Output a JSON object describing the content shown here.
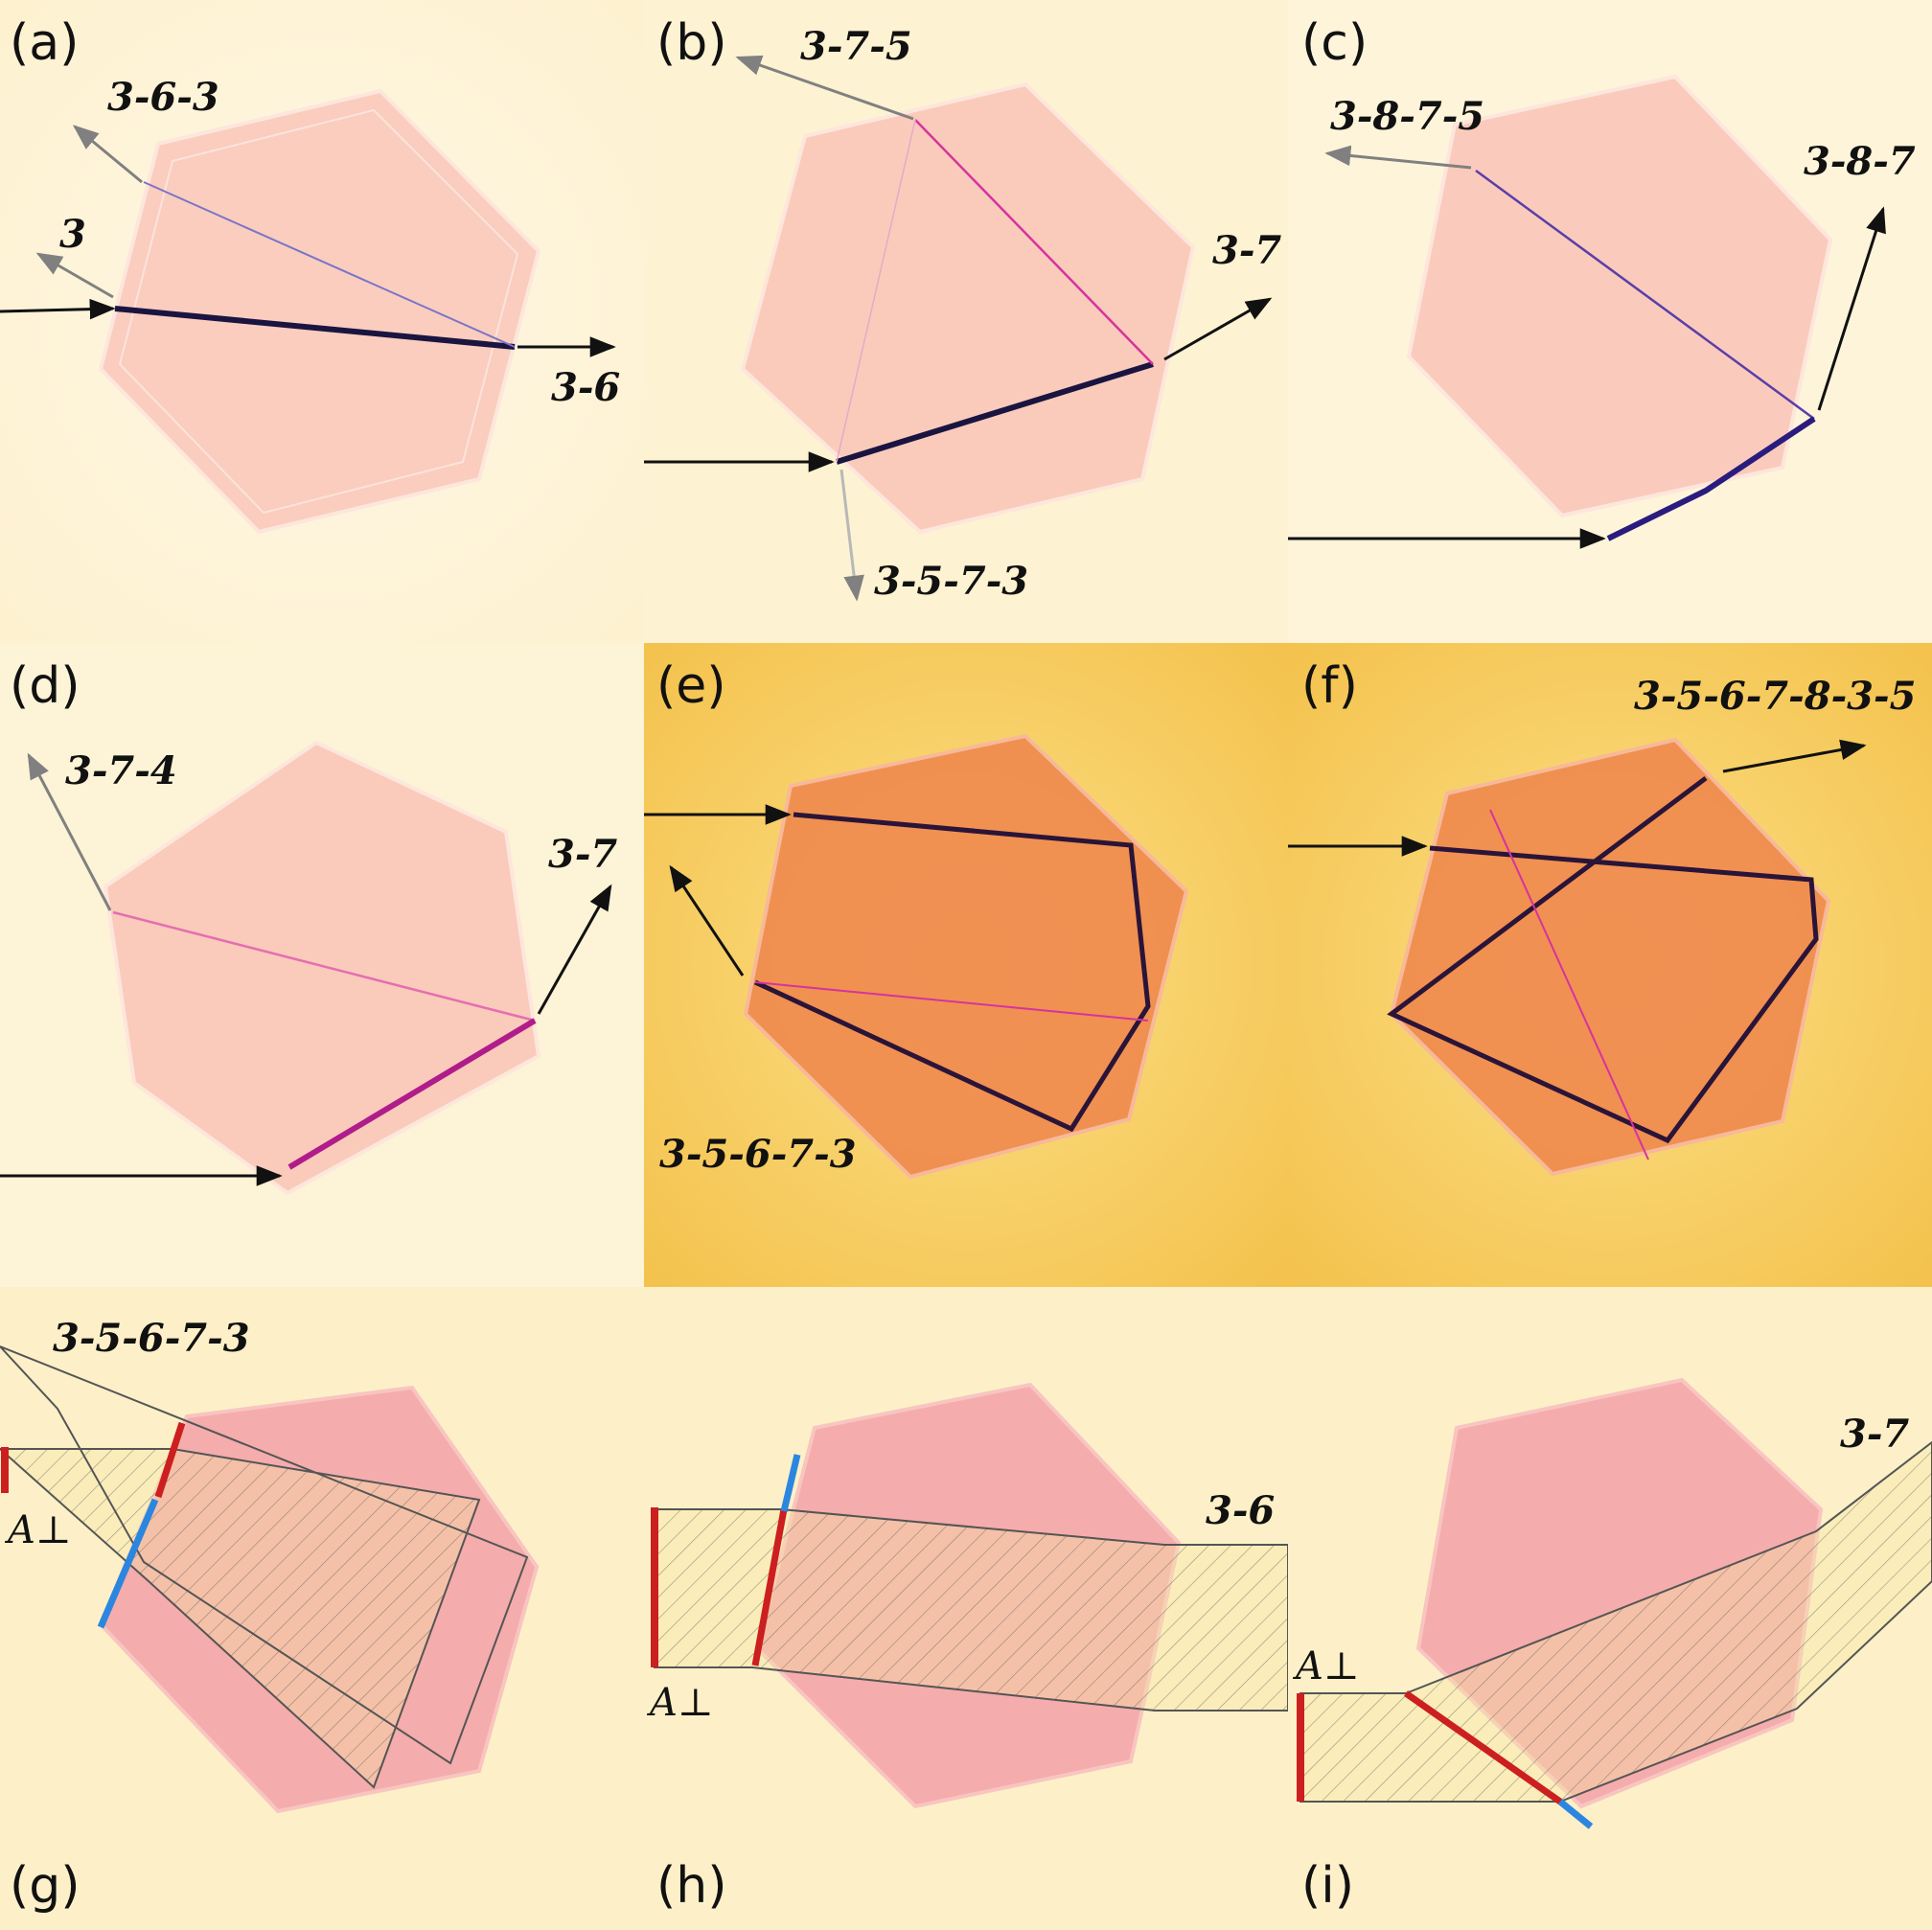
{
  "panels": [
    {
      "letter": "(a)",
      "labels": [
        "3-6-3",
        "3",
        "3-6"
      ]
    },
    {
      "letter": "(b)",
      "labels": [
        "3-7-5",
        "3-7",
        "3-5-7-3"
      ]
    },
    {
      "letter": "(c)",
      "labels": [
        "3-8-7-5",
        "3-8-7"
      ]
    },
    {
      "letter": "(d)",
      "labels": [
        "3-7-4",
        "3-7"
      ]
    },
    {
      "letter": "(e)",
      "labels": [
        "3-5-6-7-3"
      ]
    },
    {
      "letter": "(f)",
      "labels": [
        "3-5-6-7-8-3-5"
      ]
    },
    {
      "letter": "(g)",
      "labels": [
        "3-5-6-7-3"
      ],
      "area_label": "A⊥"
    },
    {
      "letter": "(h)",
      "labels": [
        "3-6"
      ],
      "area_label": "A⊥"
    },
    {
      "letter": "(i)",
      "labels": [
        "3-7"
      ],
      "area_label": "A⊥"
    }
  ],
  "colors": {
    "crystal_light": "#f9c6b8",
    "crystal_dark": "#ef8a4e",
    "crystal_pink": "#f4a4a8",
    "background_glow": "#fbe9a8",
    "ray_dark": "#1a1440",
    "ray_magenta": "#d6339e",
    "arrow_gray": "#808080",
    "marker_red": "#cc1f1f",
    "marker_blue": "#2b86e0"
  }
}
